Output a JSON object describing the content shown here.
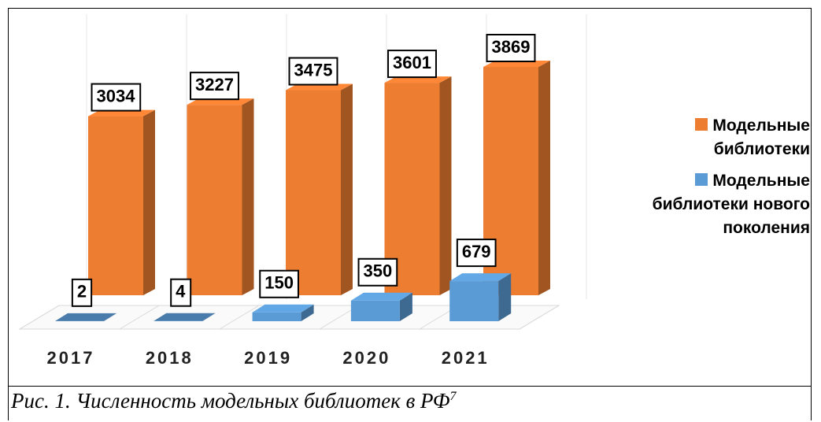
{
  "chart_data": {
    "type": "bar3d",
    "categories": [
      "2017",
      "2018",
      "2019",
      "2020",
      "2021"
    ],
    "series": [
      {
        "name": "Модельные библиотеки",
        "color": "#ed7d31",
        "values": [
          3034,
          3227,
          3475,
          3601,
          3869
        ]
      },
      {
        "name": "Модельные библиотеки нового поколения",
        "color": "#5b9bd5",
        "values": [
          2,
          4,
          150,
          350,
          679
        ]
      }
    ],
    "legend": "right"
  },
  "caption": {
    "text": "Рис. 1. Численность модельных библиотек в РФ",
    "footnote": "7"
  }
}
